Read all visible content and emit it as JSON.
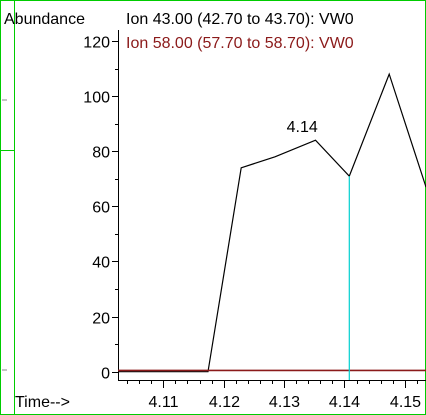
{
  "chart_data": {
    "type": "line",
    "ylabel": "Abundance",
    "xlabel": "Time-->",
    "xlim": [
      4.1025,
      4.1535
    ],
    "ylim": [
      -3,
      124
    ],
    "y_ticks": [
      0,
      20,
      40,
      60,
      80,
      100,
      120
    ],
    "x_ticks": [
      4.11,
      4.12,
      4.13,
      4.14,
      4.15
    ],
    "x_tick_labels": [
      "4.11",
      "4.12",
      "4.13",
      "4.14",
      "4.15"
    ],
    "y_tick_labels": [
      "0",
      "20",
      "40",
      "60",
      "80",
      "100",
      "120"
    ],
    "grid": false,
    "series": [
      {
        "name": "Ion  43.00 (42.70 to 43.70): VW0",
        "color": "#000000",
        "x": [
          4.1025,
          4.1174,
          4.1229,
          4.1285,
          4.1352,
          4.1408,
          4.1474,
          4.1535
        ],
        "y": [
          0,
          0,
          74,
          78,
          84,
          71,
          108,
          67
        ]
      },
      {
        "name": "Ion  58.00 (57.70 to 58.70): VW0",
        "color": "#8b1a1a",
        "x": [
          4.1025,
          4.1535
        ],
        "y": [
          0.5,
          0.5
        ]
      }
    ],
    "annotations": [
      {
        "text": "4.14",
        "x": 4.133,
        "y": 87
      }
    ],
    "cursor": {
      "x": 4.1408,
      "color": "#00d0d0"
    }
  },
  "frame_color": "#00cc00"
}
